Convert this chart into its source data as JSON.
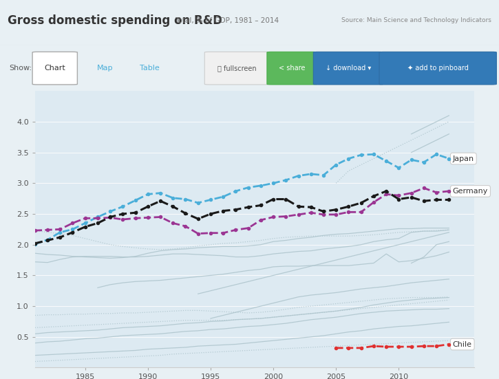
{
  "title": "Gross domestic spending on R&D",
  "subtitle": "Total, % of GDP, 1981 – 2014",
  "source": "Source: Main Science and Technology Indicators",
  "bg_color": "#d6e8f0",
  "plot_bg_color": "#ddeaf2",
  "header_bg": "#f0f4f6",
  "years": [
    1981,
    1982,
    1983,
    1984,
    1985,
    1986,
    1987,
    1988,
    1989,
    1990,
    1991,
    1992,
    1993,
    1994,
    1995,
    1996,
    1997,
    1998,
    1999,
    2000,
    2001,
    2002,
    2003,
    2004,
    2005,
    2006,
    2007,
    2008,
    2009,
    2010,
    2011,
    2012,
    2013,
    2014
  ],
  "japan": [
    2.01,
    2.08,
    2.2,
    2.25,
    2.35,
    2.45,
    2.54,
    2.62,
    2.72,
    2.82,
    2.84,
    2.76,
    2.74,
    2.68,
    2.73,
    2.78,
    2.87,
    2.93,
    2.96,
    3.0,
    3.05,
    3.12,
    3.15,
    3.13,
    3.3,
    3.4,
    3.46,
    3.47,
    3.36,
    3.25,
    3.38,
    3.34,
    3.47,
    3.4
  ],
  "germany": [
    2.23,
    2.24,
    2.25,
    2.35,
    2.43,
    2.43,
    2.44,
    2.41,
    2.43,
    2.44,
    2.45,
    2.35,
    2.3,
    2.18,
    2.19,
    2.19,
    2.24,
    2.27,
    2.4,
    2.45,
    2.46,
    2.49,
    2.52,
    2.49,
    2.49,
    2.53,
    2.53,
    2.69,
    2.82,
    2.8,
    2.84,
    2.92,
    2.85,
    2.87
  ],
  "usa": [
    2.02,
    2.07,
    2.12,
    2.2,
    2.29,
    2.35,
    2.45,
    2.5,
    2.52,
    2.62,
    2.71,
    2.62,
    2.51,
    2.42,
    2.5,
    2.55,
    2.57,
    2.61,
    2.64,
    2.74,
    2.74,
    2.62,
    2.61,
    2.54,
    2.57,
    2.62,
    2.68,
    2.79,
    2.87,
    2.74,
    2.77,
    2.71,
    2.73,
    2.73
  ],
  "chile": [
    null,
    null,
    null,
    null,
    null,
    null,
    null,
    null,
    null,
    null,
    null,
    null,
    null,
    null,
    null,
    null,
    null,
    null,
    null,
    null,
    null,
    null,
    null,
    null,
    0.32,
    0.32,
    0.32,
    0.35,
    0.34,
    0.34,
    0.34,
    0.35,
    0.35,
    0.38
  ],
  "gray_solid_lines": [
    [
      1.86,
      1.84,
      1.83,
      1.81,
      1.8,
      1.79,
      1.78,
      1.79,
      1.81,
      1.86,
      1.9,
      1.92,
      1.93,
      1.95,
      1.96,
      1.97,
      1.97,
      1.98,
      2.0,
      2.05,
      2.07,
      2.1,
      2.12,
      2.15,
      2.17,
      2.18,
      2.2,
      2.22,
      2.24,
      2.26,
      2.26,
      2.27,
      2.27,
      2.27
    ],
    [
      1.72,
      1.71,
      1.76,
      1.8,
      1.81,
      1.81,
      1.81,
      1.8,
      1.8,
      1.81,
      1.83,
      1.85,
      1.85,
      1.84,
      1.83,
      1.82,
      1.8,
      1.8,
      1.82,
      1.85,
      1.87,
      1.89,
      1.9,
      1.93,
      1.95,
      1.97,
      2.0,
      2.05,
      2.08,
      2.1,
      2.2,
      2.22,
      2.22,
      2.24
    ],
    [
      null,
      null,
      null,
      null,
      null,
      1.3,
      1.35,
      1.38,
      1.4,
      1.41,
      1.42,
      1.44,
      1.46,
      1.48,
      1.5,
      1.52,
      1.55,
      1.58,
      1.6,
      1.64,
      1.65,
      1.65,
      1.66,
      1.66,
      1.66,
      1.66,
      1.68,
      1.7,
      1.85,
      1.72,
      1.74,
      1.78,
      1.82,
      1.88
    ],
    [
      null,
      null,
      null,
      null,
      null,
      null,
      null,
      null,
      null,
      null,
      null,
      null,
      null,
      null,
      null,
      null,
      null,
      null,
      null,
      null,
      null,
      null,
      null,
      null,
      null,
      null,
      null,
      null,
      null,
      null,
      1.7,
      1.8,
      2.0,
      2.05
    ],
    [
      null,
      null,
      null,
      null,
      null,
      null,
      null,
      null,
      null,
      null,
      null,
      null,
      null,
      null,
      null,
      null,
      null,
      null,
      null,
      null,
      null,
      null,
      null,
      null,
      null,
      null,
      null,
      null,
      null,
      null,
      null,
      null,
      null,
      null
    ],
    [
      0.55,
      0.57,
      0.58,
      0.59,
      0.6,
      0.61,
      0.63,
      0.65,
      0.66,
      0.67,
      0.68,
      0.7,
      0.72,
      0.73,
      0.75,
      0.76,
      0.78,
      0.79,
      0.8,
      0.82,
      0.84,
      0.86,
      0.88,
      0.9,
      0.92,
      0.95,
      0.98,
      1.02,
      1.05,
      1.08,
      1.1,
      1.12,
      1.13,
      1.14
    ],
    [
      0.4,
      0.42,
      0.43,
      0.45,
      0.47,
      0.48,
      0.5,
      0.52,
      0.53,
      0.54,
      0.55,
      0.57,
      0.59,
      0.6,
      0.62,
      0.63,
      0.65,
      0.67,
      0.68,
      0.7,
      0.72,
      0.75,
      0.78,
      0.8,
      0.82,
      0.85,
      0.88,
      0.9,
      0.92,
      0.93,
      0.94,
      0.95,
      0.95,
      0.96
    ],
    [
      0.2,
      0.21,
      0.22,
      0.23,
      0.24,
      0.25,
      0.26,
      0.27,
      0.28,
      0.3,
      0.31,
      0.32,
      0.33,
      0.35,
      0.36,
      0.37,
      0.38,
      0.4,
      0.42,
      0.44,
      0.46,
      0.48,
      0.5,
      0.52,
      0.55,
      0.58,
      0.6,
      0.63,
      0.65,
      0.67,
      0.68,
      0.7,
      0.72,
      0.74
    ],
    [
      null,
      null,
      null,
      null,
      null,
      null,
      null,
      null,
      null,
      null,
      null,
      null,
      null,
      null,
      null,
      null,
      null,
      null,
      null,
      null,
      null,
      null,
      null,
      null,
      null,
      null,
      null,
      null,
      null,
      null,
      3.8,
      3.9,
      4.0,
      4.1
    ],
    [
      null,
      null,
      null,
      null,
      null,
      null,
      null,
      null,
      null,
      null,
      null,
      null,
      null,
      null,
      null,
      null,
      null,
      null,
      null,
      null,
      null,
      null,
      null,
      null,
      null,
      null,
      null,
      null,
      null,
      null,
      3.5,
      3.6,
      3.7,
      3.8
    ],
    [
      null,
      null,
      null,
      null,
      null,
      null,
      null,
      null,
      null,
      null,
      null,
      null,
      null,
      1.2,
      1.25,
      1.3,
      1.35,
      1.4,
      1.45,
      1.5,
      1.55,
      1.6,
      1.65,
      1.7,
      1.75,
      1.8,
      1.85,
      1.9,
      1.95,
      2.0,
      2.05,
      2.1,
      2.15,
      2.2
    ],
    [
      null,
      null,
      null,
      null,
      null,
      null,
      null,
      null,
      null,
      null,
      null,
      null,
      null,
      null,
      0.8,
      0.85,
      0.9,
      0.95,
      1.0,
      1.05,
      1.1,
      1.15,
      1.18,
      1.2,
      1.22,
      1.25,
      1.28,
      1.3,
      1.32,
      1.35,
      1.38,
      1.4,
      1.42,
      1.44
    ],
    [
      null,
      null,
      null,
      null,
      null,
      null,
      null,
      null,
      null,
      null,
      null,
      null,
      null,
      null,
      null,
      null,
      null,
      null,
      null,
      null,
      null,
      null,
      null,
      null,
      null,
      null,
      null,
      null,
      null,
      null,
      null,
      null,
      null,
      null
    ]
  ],
  "gray_dotted_lines": [
    [
      2.23,
      2.2,
      2.18,
      2.15,
      2.1,
      2.05,
      2.0,
      1.97,
      1.95,
      1.93,
      1.92,
      1.93,
      1.95,
      1.98,
      2.0,
      2.02,
      2.03,
      2.05,
      2.07,
      2.1,
      2.12,
      2.13,
      2.14,
      2.14,
      2.14,
      2.14,
      2.15,
      2.16,
      2.18,
      2.2,
      2.21,
      2.22,
      2.23,
      2.24
    ],
    [
      null,
      null,
      null,
      null,
      null,
      null,
      null,
      null,
      null,
      null,
      null,
      null,
      null,
      null,
      null,
      null,
      null,
      null,
      null,
      null,
      null,
      null,
      null,
      null,
      null,
      null,
      null,
      null,
      null,
      null,
      null,
      null,
      null,
      null
    ],
    [
      null,
      null,
      null,
      null,
      null,
      null,
      null,
      null,
      null,
      null,
      null,
      null,
      null,
      null,
      null,
      null,
      null,
      null,
      null,
      null,
      null,
      null,
      null,
      null,
      null,
      null,
      null,
      null,
      null,
      null,
      null,
      null,
      null,
      null
    ],
    [
      0.85,
      0.86,
      0.86,
      0.87,
      0.87,
      0.88,
      0.88,
      0.89,
      0.89,
      0.9,
      0.91,
      0.92,
      0.93,
      0.93,
      0.92,
      0.91,
      0.9,
      0.89,
      0.9,
      0.92,
      0.95,
      0.98,
      1.0,
      1.02,
      1.04,
      1.06,
      1.08,
      1.1,
      1.12,
      1.13,
      1.14,
      1.14,
      1.14,
      1.15
    ],
    [
      0.65,
      0.66,
      0.67,
      0.68,
      0.69,
      0.7,
      0.71,
      0.72,
      0.73,
      0.74,
      0.75,
      0.76,
      0.77,
      0.77,
      0.77,
      0.77,
      0.78,
      0.79,
      0.8,
      0.82,
      0.84,
      0.86,
      0.88,
      0.9,
      0.92,
      0.94,
      0.96,
      0.98,
      1.0,
      1.02,
      1.04,
      1.06,
      1.08,
      1.1
    ],
    [
      0.1,
      0.11,
      0.12,
      0.13,
      0.14,
      0.15,
      0.16,
      0.17,
      0.18,
      0.19,
      0.2,
      0.22,
      0.23,
      0.24,
      0.25,
      0.26,
      0.27,
      0.28,
      0.29,
      0.3,
      0.31,
      0.32,
      0.33,
      0.34,
      0.35,
      0.36,
      0.37,
      0.38,
      0.39,
      0.4,
      0.41,
      0.42,
      0.43,
      0.44
    ],
    [
      null,
      null,
      null,
      null,
      null,
      null,
      null,
      null,
      null,
      null,
      null,
      null,
      null,
      null,
      null,
      null,
      null,
      null,
      null,
      null,
      null,
      null,
      null,
      null,
      3.0,
      3.2,
      3.3,
      3.4,
      3.5,
      3.6,
      3.7,
      3.8,
      3.9,
      4.0
    ],
    [
      null,
      null,
      null,
      null,
      null,
      null,
      null,
      null,
      null,
      null,
      null,
      null,
      null,
      null,
      null,
      null,
      null,
      null,
      null,
      null,
      null,
      null,
      null,
      null,
      null,
      null,
      null,
      null,
      null,
      null,
      null,
      null,
      null,
      null
    ]
  ],
  "japan_color": "#4aaed9",
  "germany_color": "#9b3593",
  "usa_color": "#1a1a1a",
  "chile_color": "#e03030",
  "gray_color": "#adc4cc",
  "ylim": [
    0.0,
    4.5
  ],
  "yticks": [
    0.5,
    1.0,
    1.5,
    2.0,
    2.5,
    3.0,
    3.5,
    4.0
  ],
  "xticks": [
    1985,
    1990,
    1995,
    2000,
    2005,
    2010
  ]
}
